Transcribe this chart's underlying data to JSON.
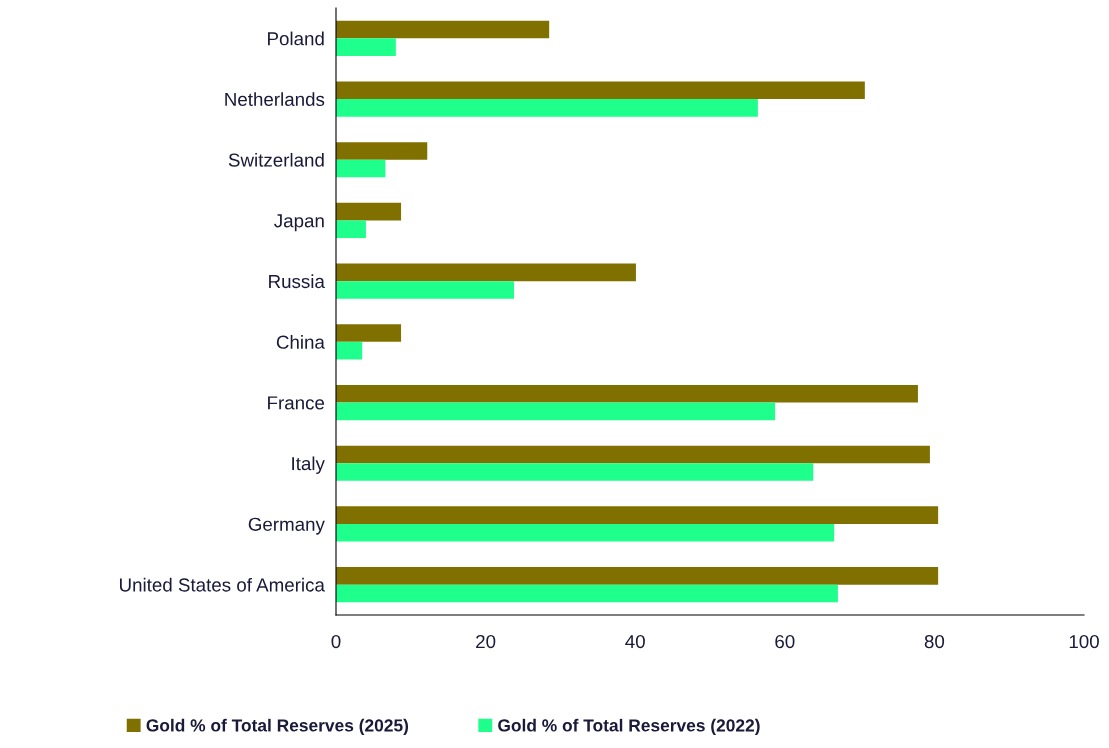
{
  "chart_data": {
    "type": "bar",
    "orientation": "horizontal",
    "categories": [
      "Poland",
      "Netherlands",
      "Switzerland",
      "Japan",
      "Russia",
      "China",
      "France",
      "Italy",
      "Germany",
      "United States of America"
    ],
    "series": [
      {
        "name": "Gold % of Total Reserves (2025)",
        "color": "#807000",
        "values": [
          28.5,
          70.7,
          12.2,
          8.7,
          40.1,
          8.7,
          77.8,
          79.4,
          80.5,
          80.5
        ]
      },
      {
        "name": "Gold % of Total Reserves (2022)",
        "color": "#1eff8c",
        "values": [
          8.0,
          56.4,
          6.6,
          4.0,
          23.8,
          3.5,
          58.7,
          63.8,
          66.6,
          67.1
        ]
      }
    ],
    "xlim": [
      0,
      100
    ],
    "xticks": [
      0,
      20,
      40,
      60,
      80,
      100
    ],
    "grid": false,
    "legend": "bottom"
  }
}
